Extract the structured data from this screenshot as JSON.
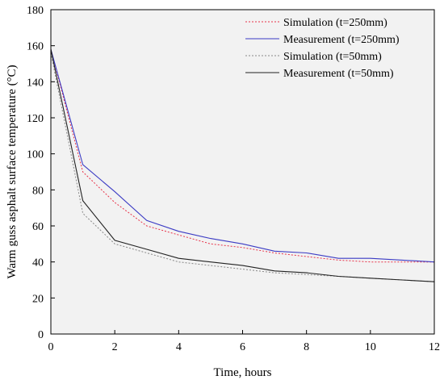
{
  "chart_data": {
    "type": "line",
    "title": "",
    "xlabel": "Time, hours",
    "ylabel": "Warm guss asphalt surface temperature (°C)",
    "xlim": [
      0,
      12
    ],
    "ylim": [
      0,
      180
    ],
    "x_ticks": [
      "0",
      "2",
      "4",
      "6",
      "8",
      "10",
      "12"
    ],
    "y_ticks": [
      "0",
      "20",
      "40",
      "60",
      "80",
      "100",
      "120",
      "140",
      "160",
      "180"
    ],
    "grid": false,
    "plot_background": "#f2f2f2",
    "legend_position": "top-right",
    "series": [
      {
        "name": "Simulation (t=250mm)",
        "color": "#e8334a",
        "style": "dotted",
        "x": [
          0,
          1,
          2,
          3,
          4,
          5,
          6,
          7,
          8,
          9,
          10,
          11,
          12
        ],
        "y": [
          158,
          90,
          73,
          60,
          55,
          50,
          48,
          45,
          43,
          41,
          40,
          40,
          40
        ]
      },
      {
        "name": "Measurement (t=250mm)",
        "color": "#3b3bc4",
        "style": "solid",
        "x": [
          0,
          1,
          2,
          3,
          4,
          5,
          6,
          7,
          8,
          9,
          10,
          11,
          12
        ],
        "y": [
          158,
          94,
          79,
          63,
          57,
          53,
          50,
          46,
          45,
          42,
          42,
          41,
          40
        ]
      },
      {
        "name": "Simulation (t=50mm)",
        "color": "#888888",
        "style": "dotted",
        "x": [
          0,
          1,
          2,
          3,
          4,
          5,
          6,
          7,
          8,
          9,
          10,
          11,
          12
        ],
        "y": [
          156,
          67,
          50,
          45,
          40,
          38,
          36,
          34,
          33,
          32,
          31,
          30,
          29
        ]
      },
      {
        "name": "Measurement (t=50mm)",
        "color": "#222222",
        "style": "solid",
        "x": [
          0,
          1,
          2,
          3,
          4,
          5,
          6,
          7,
          8,
          9,
          10,
          11,
          12
        ],
        "y": [
          158,
          74,
          52,
          47,
          42,
          40,
          38,
          35,
          34,
          32,
          31,
          30,
          29
        ]
      }
    ]
  }
}
